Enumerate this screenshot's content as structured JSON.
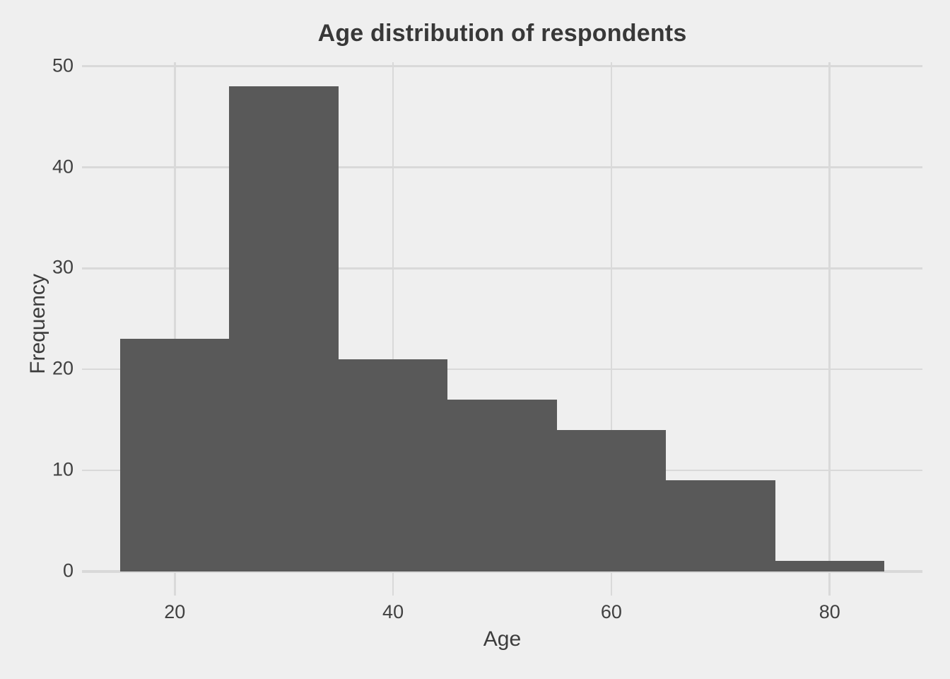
{
  "chart_data": {
    "type": "bar",
    "subtype": "histogram",
    "title": "Age distribution of respondents",
    "xlabel": "Age",
    "ylabel": "Frequency",
    "bin_edges": [
      15,
      25,
      35,
      45,
      55,
      65,
      75,
      85
    ],
    "counts": [
      23,
      48,
      21,
      17,
      14,
      9,
      1
    ],
    "x_ticks": [
      20,
      40,
      60,
      80
    ],
    "y_ticks": [
      0,
      10,
      20,
      30,
      40,
      50
    ],
    "x_range": [
      11.5,
      88.5
    ],
    "y_range": [
      -2.4,
      50.4
    ],
    "grid": "on",
    "legend": "none",
    "colors": {
      "background": "#EFEFEF",
      "gridline": "#D9D9D9",
      "bar_fill": "#595959",
      "text": "#414141",
      "title_text": "#383838"
    }
  }
}
